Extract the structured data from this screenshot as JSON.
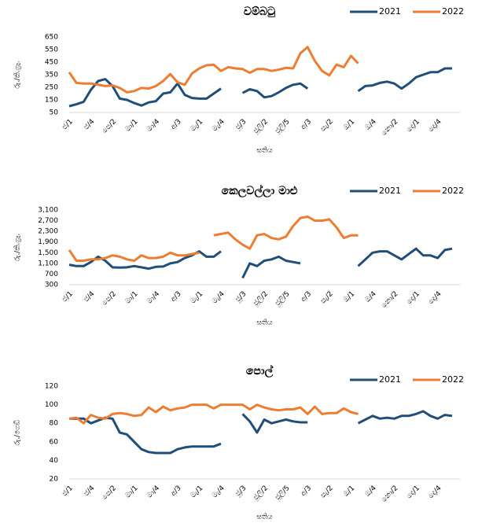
{
  "chart_data": [
    {
      "type": "line",
      "title": "වම්බටු",
      "ylabel": "රු./කි.ග්‍රෑ.",
      "xlabel": "සතිය",
      "legend": "top-right",
      "grid": false,
      "categories": [
        "ජ/1",
        null,
        null,
        "ජ/4",
        null,
        null,
        "පෙ/2",
        null,
        null,
        "මා/1",
        null,
        null,
        "මා/4",
        null,
        null,
        "අ/3",
        null,
        null,
        "මැ/1",
        null,
        null,
        "මැ/4",
        null,
        null,
        "ජූ/3",
        null,
        null,
        "ජූලි/2",
        null,
        null,
        "ජූලි/5",
        null,
        null,
        "අ/3",
        null,
        null,
        "සැ/2",
        null,
        null,
        "ඔ/1",
        null,
        null,
        "ඔ/4",
        null,
        null,
        "නො/2",
        null,
        null,
        "දෙ/1",
        null,
        null,
        "දෙ/4",
        null,
        null
      ],
      "ylim": [
        50,
        650
      ],
      "yticks": [
        50,
        150,
        250,
        350,
        450,
        550,
        650
      ],
      "series": [
        {
          "name": "2021",
          "color": "#1f4e79",
          "values": [
            100,
            115,
            135,
            230,
            300,
            315,
            260,
            160,
            150,
            125,
            105,
            130,
            140,
            200,
            210,
            280,
            190,
            165,
            160,
            160,
            200,
            240,
            null,
            null,
            205,
            235,
            220,
            170,
            180,
            210,
            245,
            270,
            280,
            240,
            null,
            null,
            null,
            null,
            null,
            null,
            220,
            260,
            265,
            285,
            295,
            280,
            240,
            280,
            330,
            350,
            370,
            370,
            400,
            400
          ]
        },
        {
          "name": "2022",
          "color": "#ed7d31",
          "values": [
            370,
            285,
            280,
            280,
            270,
            260,
            265,
            245,
            210,
            220,
            245,
            240,
            260,
            300,
            355,
            290,
            270,
            360,
            400,
            425,
            430,
            380,
            410,
            400,
            395,
            365,
            395,
            395,
            380,
            390,
            405,
            400,
            520,
            570,
            460,
            380,
            345,
            430,
            410,
            500,
            440,
            null,
            null,
            null,
            null,
            null,
            null,
            null,
            null,
            null,
            null,
            null,
            null,
            null
          ]
        }
      ]
    },
    {
      "type": "line",
      "title": "කෙලවල්ලා මාළු",
      "ylabel": "රු./කි.ග්‍රෑ.",
      "xlabel": "සතිය",
      "legend": "top-right",
      "grid": false,
      "categories": [
        "ජ/1",
        null,
        null,
        "ජ/4",
        null,
        null,
        "පෙ/2",
        null,
        null,
        "මා/1",
        null,
        null,
        "මා/4",
        null,
        null,
        "අ/3",
        null,
        null,
        "මැ/1",
        null,
        null,
        "මැ/4",
        null,
        null,
        "ජූ/3",
        null,
        null,
        "ජූලි/2",
        null,
        null,
        "ජූලි/5",
        null,
        null,
        "අ/3",
        null,
        null,
        "සැ/2",
        null,
        null,
        "ඔ/1",
        null,
        null,
        "ඔ/4",
        null,
        null,
        "නො/2",
        null,
        null,
        "දෙ/1",
        null,
        null,
        "දෙ/4",
        null,
        null
      ],
      "ylim": [
        300,
        3100
      ],
      "yticks": [
        300,
        700,
        {
          "value": 1100,
          "label": "1,100"
        },
        {
          "value": 1500,
          "label": "1,500"
        },
        {
          "value": 1900,
          "label": "1,900"
        },
        {
          "value": 2300,
          "label": "2,300"
        },
        {
          "value": 2700,
          "label": "2,700"
        },
        {
          "value": 3100,
          "label": "3,100"
        }
      ],
      "series": [
        {
          "name": "2021",
          "color": "#1f4e79",
          "values": [
            1050,
            1000,
            1000,
            1150,
            1350,
            1200,
            950,
            940,
            950,
            1000,
            950,
            900,
            970,
            980,
            1100,
            1150,
            1300,
            1400,
            1550,
            1350,
            1350,
            1550,
            null,
            null,
            550,
            1100,
            1000,
            1200,
            1250,
            1350,
            1200,
            1150,
            1100,
            null,
            null,
            null,
            null,
            null,
            null,
            null,
            1000,
            1250,
            1500,
            1550,
            1550,
            1400,
            1250,
            1450,
            1650,
            1400,
            1400,
            1300,
            1600,
            1650
          ]
        },
        {
          "name": "2022",
          "color": "#ed7d31",
          "values": [
            1600,
            1200,
            1200,
            1250,
            1250,
            1300,
            1400,
            1350,
            1250,
            1200,
            1400,
            1300,
            1300,
            1350,
            1500,
            1400,
            1400,
            1450,
            1500,
            null,
            2150,
            2200,
            2250,
            2000,
            1800,
            1650,
            2150,
            2200,
            2050,
            2000,
            2100,
            2500,
            2800,
            2850,
            2700,
            2700,
            2750,
            2450,
            2050,
            2150,
            2150,
            null,
            null,
            null,
            null,
            null,
            null,
            null,
            null,
            null,
            null,
            null,
            null,
            null
          ]
        }
      ]
    },
    {
      "type": "line",
      "title": "පොල්",
      "ylabel": "රු./ගෙඩි",
      "xlabel": "සතිය",
      "legend": "top-right",
      "grid": false,
      "categories": [
        "ජ/1",
        null,
        null,
        "ජ/4",
        null,
        null,
        "පෙ/2",
        null,
        null,
        "මා/1",
        null,
        null,
        "මා/4",
        null,
        null,
        "අ/3",
        null,
        null,
        "මැ/1",
        null,
        null,
        "මැ/4",
        null,
        null,
        "ජූ/3",
        null,
        null,
        "ජූලි/2",
        null,
        null,
        "ජූලි/5",
        null,
        null,
        "අ/3",
        null,
        null,
        "සැ/2",
        null,
        null,
        "ඔ/1",
        null,
        null,
        "ඔ/4",
        null,
        null,
        "නො/2",
        null,
        null,
        "දෙ/1",
        null,
        null,
        "දෙ/4",
        null,
        null
      ],
      "ylim": [
        20,
        120
      ],
      "yticks": [
        20,
        40,
        60,
        80,
        100,
        120
      ],
      "series": [
        {
          "name": "2021",
          "color": "#1f4e79",
          "values": [
            85,
            85,
            85,
            80,
            83,
            86,
            85,
            70,
            68,
            60,
            52,
            49,
            48,
            48,
            48,
            52,
            54,
            55,
            55,
            55,
            55,
            58,
            null,
            null,
            90,
            82,
            70,
            84,
            80,
            82,
            84,
            82,
            81,
            81,
            null,
            null,
            null,
            null,
            null,
            null,
            80,
            84,
            88,
            85,
            86,
            85,
            88,
            88,
            90,
            93,
            88,
            85,
            89,
            88
          ]
        },
        {
          "name": "2022",
          "color": "#ed7d31",
          "values": [
            85,
            86,
            80,
            89,
            86,
            85,
            90,
            91,
            90,
            88,
            89,
            97,
            92,
            98,
            94,
            96,
            97,
            100,
            100,
            100,
            96,
            100,
            100,
            100,
            100,
            95,
            100,
            97,
            95,
            94,
            95,
            95,
            97,
            90,
            98,
            90,
            91,
            91,
            96,
            92,
            90,
            null,
            null,
            null,
            null,
            null,
            null,
            null,
            null,
            null,
            null,
            null,
            null,
            null
          ]
        }
      ]
    }
  ]
}
